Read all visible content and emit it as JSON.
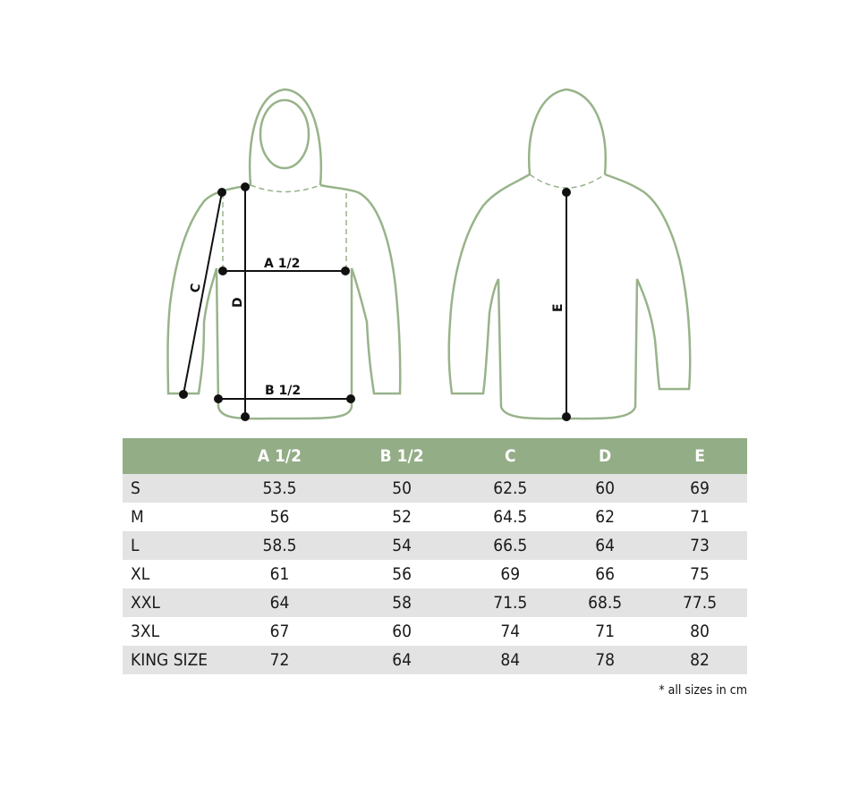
{
  "diagram": {
    "front_labels": {
      "a": "A 1/2",
      "b": "B 1/2",
      "c": "C",
      "d": "D"
    },
    "back_labels": {
      "e": "E"
    },
    "outline_color": "#98b38a"
  },
  "table": {
    "header_color": "#93ad86",
    "columns": [
      "",
      "A 1/2",
      "B 1/2",
      "C",
      "D",
      "E"
    ],
    "rows": [
      {
        "size": "S",
        "values": [
          "53.5",
          "50",
          "62.5",
          "60",
          "69"
        ]
      },
      {
        "size": "M",
        "values": [
          "56",
          "52",
          "64.5",
          "62",
          "71"
        ]
      },
      {
        "size": "L",
        "values": [
          "58.5",
          "54",
          "66.5",
          "64",
          "73"
        ]
      },
      {
        "size": "XL",
        "values": [
          "61",
          "56",
          "69",
          "66",
          "75"
        ]
      },
      {
        "size": "XXL",
        "values": [
          "64",
          "58",
          "71.5",
          "68.5",
          "77.5"
        ]
      },
      {
        "size": "3XL",
        "values": [
          "67",
          "60",
          "74",
          "71",
          "80"
        ]
      },
      {
        "size": "KING SIZE",
        "values": [
          "72",
          "64",
          "84",
          "78",
          "82"
        ]
      }
    ]
  },
  "note": "* all sizes in cm"
}
